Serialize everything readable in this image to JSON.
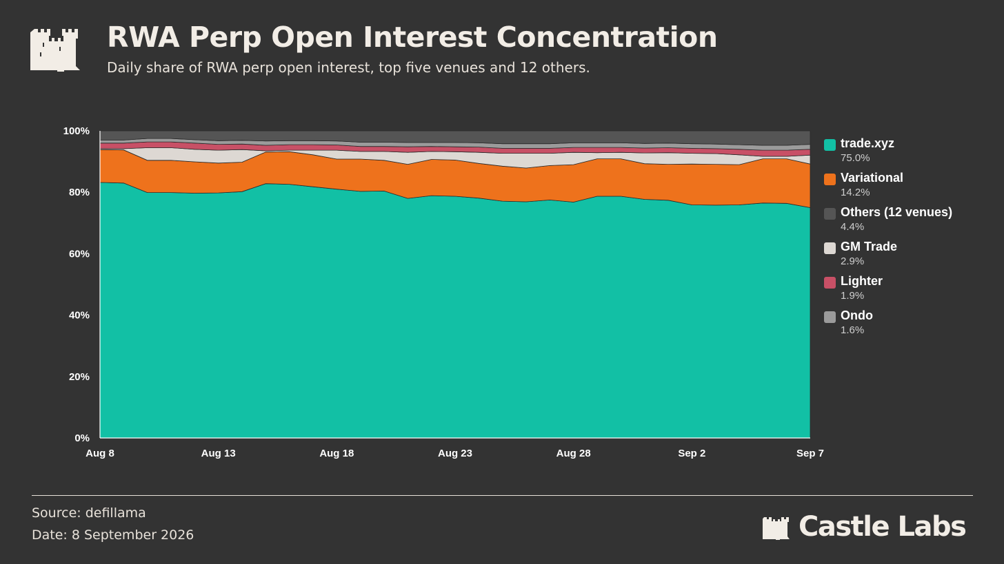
{
  "header": {
    "title": "RWA Perp Open Interest Concentration",
    "subtitle": "Daily share of RWA perp open interest, top five venues and 12 others."
  },
  "footer": {
    "source": "Source: defillama",
    "date": "Date: 8 September 2026",
    "brand": "Castle Labs"
  },
  "chart_data": {
    "type": "area",
    "stacked": true,
    "x": [
      "Aug 8",
      "Aug 9",
      "Aug 10",
      "Aug 11",
      "Aug 12",
      "Aug 13",
      "Aug 14",
      "Aug 15",
      "Aug 16",
      "Aug 17",
      "Aug 18",
      "Aug 19",
      "Aug 20",
      "Aug 21",
      "Aug 22",
      "Aug 23",
      "Aug 24",
      "Aug 25",
      "Aug 26",
      "Aug 27",
      "Aug 28",
      "Aug 29",
      "Aug 30",
      "Aug 31",
      "Sep 1",
      "Sep 2",
      "Sep 3",
      "Sep 4",
      "Sep 5",
      "Sep 6",
      "Sep 7"
    ],
    "xticks": [
      "Aug 8",
      "Aug 13",
      "Aug 18",
      "Aug 23",
      "Aug 28",
      "Sep 2",
      "Sep 7"
    ],
    "yticks": [
      "0%",
      "20%",
      "40%",
      "60%",
      "80%",
      "100%"
    ],
    "ylim": [
      0,
      100
    ],
    "grid": false,
    "legend_position": "right",
    "series": [
      {
        "name": "trade.xyz",
        "latest": "75.0%",
        "color": "#12c0a5",
        "values": [
          83.2,
          83.0,
          79.9,
          79.9,
          79.7,
          79.8,
          80.2,
          82.8,
          82.6,
          81.8,
          81.0,
          80.3,
          80.4,
          78.0,
          78.9,
          78.7,
          78.1,
          77.1,
          76.9,
          77.5,
          76.8,
          78.7,
          78.7,
          77.7,
          77.4,
          75.9,
          75.8,
          75.9,
          76.5,
          76.4,
          75.0
        ]
      },
      {
        "name": "Variational",
        "latest": "14.2%",
        "color": "#ee721c",
        "values": [
          10.7,
          10.8,
          10.5,
          10.5,
          10.2,
          9.7,
          9.6,
          10.3,
          10.6,
          10.4,
          9.8,
          10.5,
          10.0,
          11.1,
          11.8,
          11.8,
          11.3,
          11.4,
          11.0,
          11.2,
          12.2,
          12.2,
          12.2,
          11.6,
          11.7,
          13.3,
          13.3,
          13.1,
          14.4,
          14.5,
          14.2
        ]
      },
      {
        "name": "GM Trade",
        "latest": "2.9%",
        "color": "#ddd8d3",
        "values": [
          0.3,
          0.4,
          4.1,
          4.1,
          4.1,
          4.2,
          4.1,
          0.4,
          0.5,
          1.5,
          2.9,
          2.5,
          2.9,
          3.9,
          2.6,
          2.7,
          3.6,
          4.2,
          4.8,
          4.0,
          4.0,
          2.0,
          2.1,
          3.5,
          3.8,
          3.5,
          3.5,
          3.2,
          0.8,
          0.8,
          2.9
        ]
      },
      {
        "name": "Lighter",
        "latest": "1.9%",
        "color": "#c85066",
        "values": [
          1.8,
          1.8,
          1.9,
          1.9,
          2.0,
          1.9,
          1.8,
          1.8,
          1.8,
          1.8,
          1.7,
          1.6,
          1.6,
          1.8,
          1.6,
          1.6,
          1.7,
          1.6,
          1.6,
          1.6,
          1.6,
          1.7,
          1.6,
          1.6,
          1.6,
          1.6,
          1.6,
          1.8,
          2.0,
          2.0,
          1.9
        ]
      },
      {
        "name": "Ondo",
        "latest": "1.6%",
        "color": "#9b9b9b",
        "values": [
          1.0,
          1.0,
          1.1,
          1.1,
          1.1,
          1.2,
          1.2,
          1.4,
          1.3,
          1.3,
          1.3,
          1.4,
          1.4,
          1.4,
          1.3,
          1.4,
          1.4,
          1.5,
          1.5,
          1.5,
          1.5,
          1.5,
          1.5,
          1.5,
          1.5,
          1.5,
          1.5,
          1.5,
          1.6,
          1.6,
          1.6
        ]
      },
      {
        "name": "Others (12 venues)",
        "latest": "4.4%",
        "color": "#555555",
        "values": [
          3.0,
          3.0,
          2.5,
          2.5,
          2.9,
          3.2,
          3.1,
          3.3,
          3.2,
          3.2,
          3.3,
          3.7,
          3.7,
          3.8,
          3.8,
          3.8,
          3.9,
          4.2,
          4.2,
          4.2,
          3.9,
          3.9,
          3.9,
          4.1,
          4.0,
          4.2,
          4.3,
          4.5,
          4.7,
          4.7,
          4.4
        ]
      }
    ],
    "legend_order": [
      "trade.xyz",
      "Variational",
      "Others (12 venues)",
      "GM Trade",
      "Lighter",
      "Ondo"
    ]
  },
  "colors": {
    "background": "#333333",
    "text": "#f2ede6"
  }
}
